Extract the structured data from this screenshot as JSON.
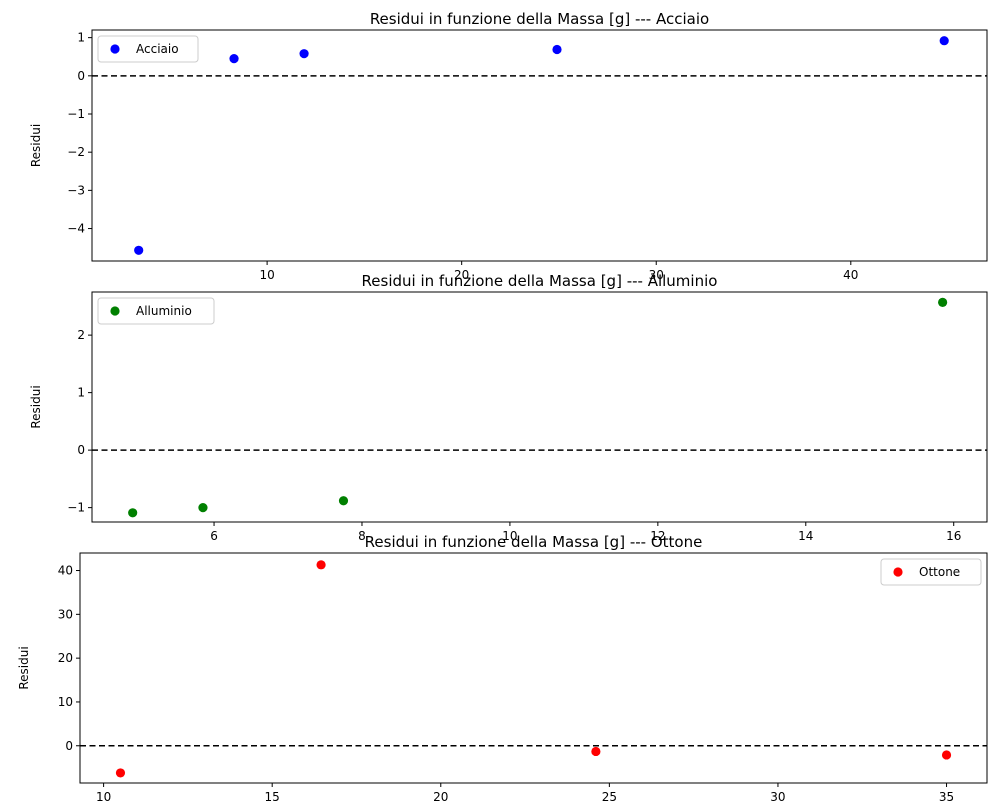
{
  "chart_data": [
    {
      "type": "scatter",
      "title": "Residui in funzione della Massa [g] --- Acciaio",
      "xlabel": "",
      "ylabel": "Residui",
      "xlim": [
        1.0,
        47.0
      ],
      "ylim": [
        -4.85,
        1.2
      ],
      "xticks": [
        10,
        20,
        30,
        40
      ],
      "yticks": [
        1,
        0,
        -1,
        -2,
        -3,
        -4
      ],
      "ytick_labels": [
        "1",
        "0",
        "−1",
        "−2",
        "−3",
        "−4"
      ],
      "reference_line": 0,
      "legend_position": "upper-left",
      "series": [
        {
          "name": "Acciaio",
          "color": "#0000ff",
          "x": [
            3.4,
            8.3,
            11.9,
            24.9,
            44.8
          ],
          "y": [
            -4.57,
            0.45,
            0.58,
            0.69,
            0.92
          ]
        }
      ]
    },
    {
      "type": "scatter",
      "title": "Residui in funzione della Massa [g] ---    Alluminio",
      "xlabel": "",
      "ylabel": "Residui",
      "xlim": [
        4.35,
        16.45
      ],
      "ylim": [
        -1.25,
        2.75
      ],
      "xticks": [
        6,
        8,
        10,
        12,
        14,
        16
      ],
      "yticks": [
        2,
        1,
        0,
        -1
      ],
      "ytick_labels": [
        "2",
        "1",
        "0",
        "−1"
      ],
      "reference_line": 0,
      "legend_position": "upper-left",
      "series": [
        {
          "name": "Alluminio",
          "color": "#008000",
          "x": [
            4.9,
            5.85,
            7.75,
            15.85
          ],
          "y": [
            -1.09,
            -1.0,
            -0.88,
            2.57
          ]
        }
      ]
    },
    {
      "type": "scatter",
      "title": "Residui in funzione della Massa [g] ---    Ottone",
      "xlabel": "",
      "ylabel": "Residui",
      "xlim": [
        9.3,
        36.2
      ],
      "ylim": [
        -8.5,
        44.0
      ],
      "xticks": [
        10,
        15,
        20,
        25,
        30,
        35
      ],
      "yticks": [
        40,
        30,
        20,
        10,
        0
      ],
      "ytick_labels": [
        "40",
        "30",
        "20",
        "10",
        "0"
      ],
      "reference_line": 0,
      "legend_position": "upper-right",
      "series": [
        {
          "name": "Ottone",
          "color": "#ff0000",
          "x": [
            10.5,
            16.45,
            24.6,
            35.0
          ],
          "y": [
            -6.2,
            41.3,
            -1.3,
            -2.1
          ]
        }
      ]
    }
  ]
}
